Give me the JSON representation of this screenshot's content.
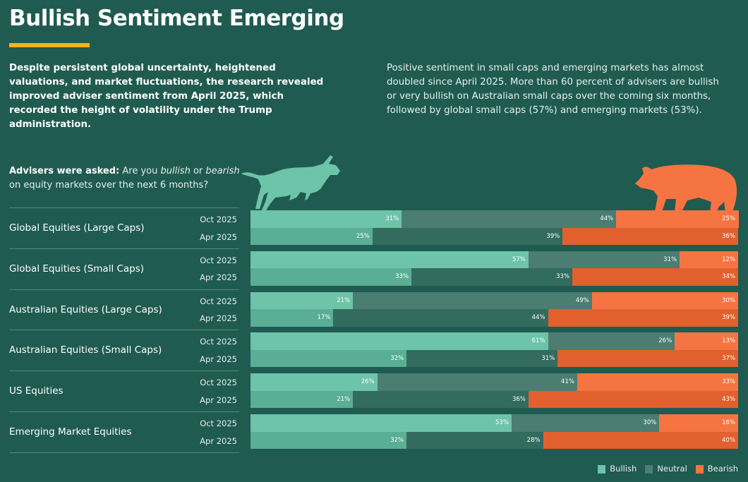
{
  "title": "Bullish Sentiment Emerging",
  "intro_left": "Despite persistent global uncertainty, heightened valuations, and market fluctuations, the research revealed improved adviser sentiment from April 2025, which recorded the height of volatility under the Trump administration.",
  "intro_right": "Positive sentiment in small caps and emerging markets has almost doubled since April 2025. More than 60 percent of advisers are bullish or very bullish on Australian small caps over the coming six months, followed by global small caps (57%) and emerging markets (53%).",
  "question": {
    "lead": "Advisers were asked:",
    "t1": " Are you ",
    "bullish": "bullish",
    "t2": " or ",
    "bearish": "bearish",
    "t3": " on equity markets over the next 6 months?"
  },
  "icons": [
    "bull-icon",
    "bear-icon"
  ],
  "colors": {
    "background": "#1f5b50",
    "accent": "#f5b21b",
    "bullish_oct": "#6dc4a9",
    "bullish_apr": "#5aae94",
    "neutral_oct": "#4b7d72",
    "neutral_apr": "#336b5f",
    "bearish_oct": "#f67442",
    "bearish_apr": "#e2602d"
  },
  "chart_data": {
    "type": "bar",
    "stacked": true,
    "orientation": "horizontal",
    "unit": "%",
    "categories": [
      "Global Equities (Large Caps)",
      "Global Equities (Small Caps)",
      "Australian Equities (Large Caps)",
      "Australian Equities (Small Caps)",
      "US Equities",
      "Emerging Market Equities"
    ],
    "periods": [
      "Oct 2025",
      "Apr 2025"
    ],
    "series": [
      {
        "name": "Bullish",
        "values": {
          "Oct 2025": [
            31,
            57,
            21,
            61,
            26,
            53
          ],
          "Apr 2025": [
            25,
            33,
            17,
            32,
            21,
            32
          ]
        }
      },
      {
        "name": "Neutral",
        "values": {
          "Oct 2025": [
            44,
            31,
            49,
            26,
            41,
            30
          ],
          "Apr 2025": [
            39,
            33,
            44,
            31,
            36,
            28
          ]
        }
      },
      {
        "name": "Bearish",
        "values": {
          "Oct 2025": [
            25,
            12,
            30,
            13,
            33,
            16
          ],
          "Apr 2025": [
            36,
            34,
            39,
            37,
            43,
            40
          ]
        }
      }
    ],
    "legend": "bottom-right"
  }
}
